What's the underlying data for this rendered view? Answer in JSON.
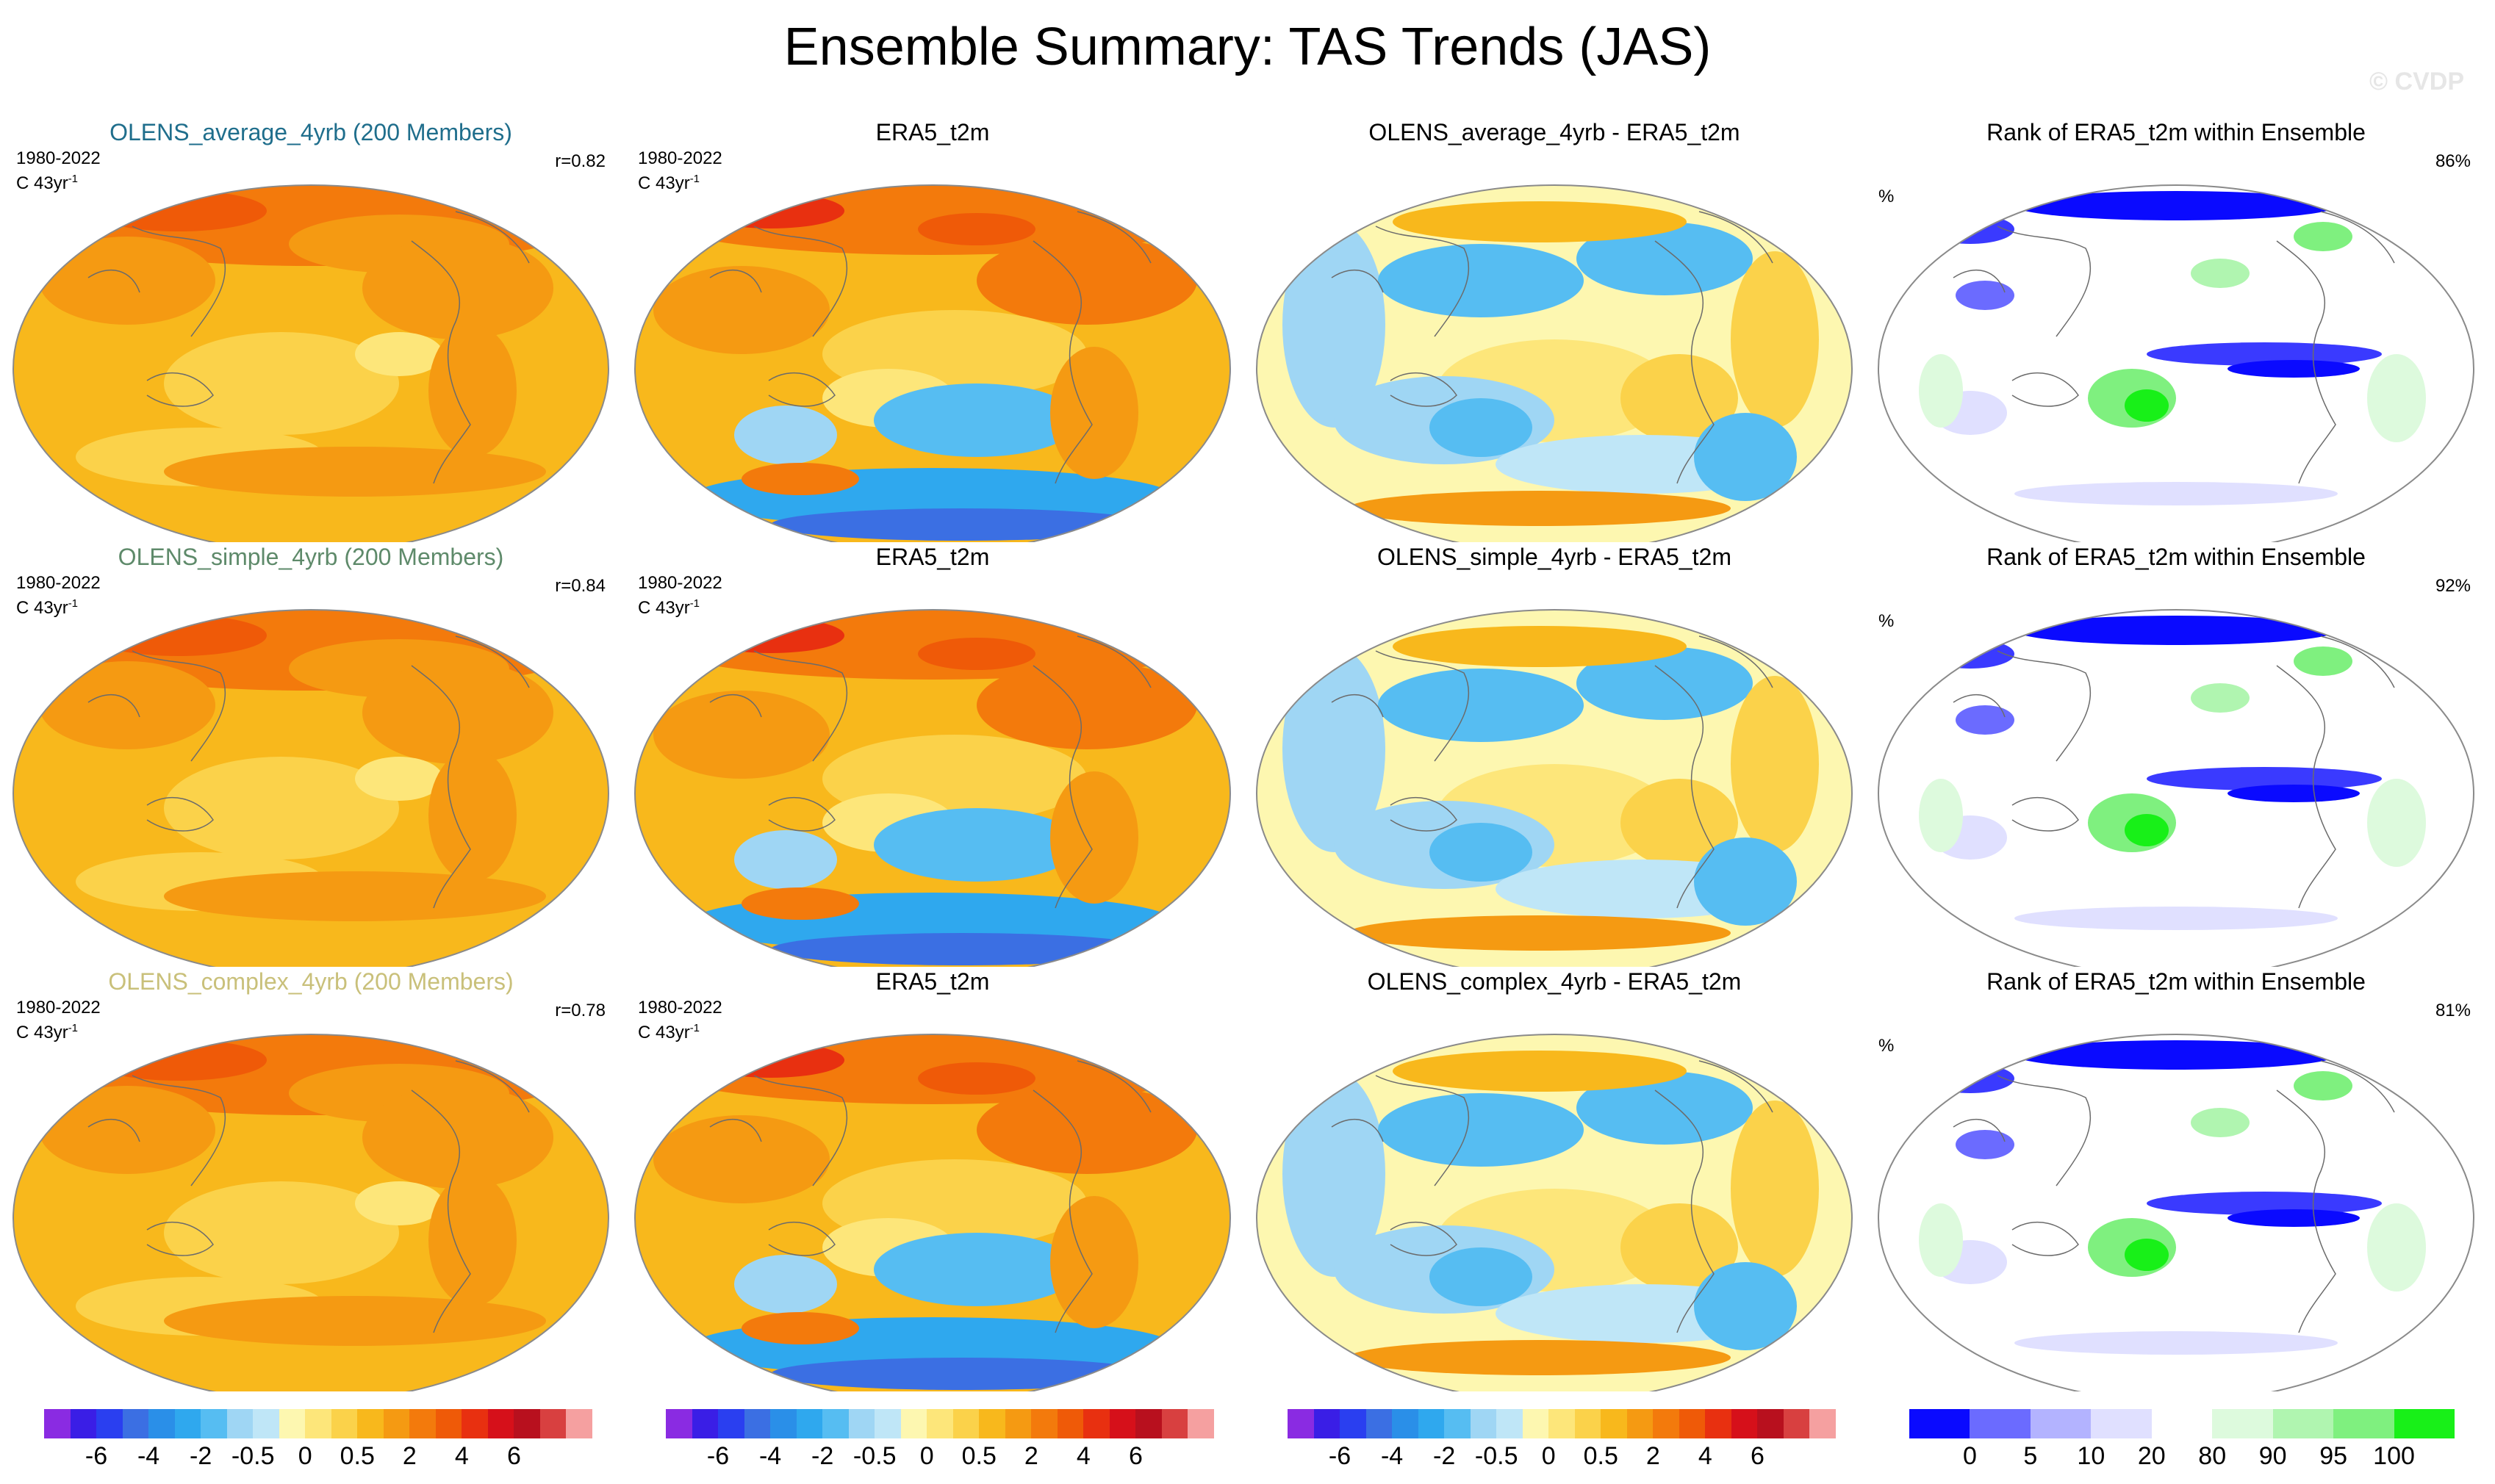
{
  "title": "Ensemble Summary: TAS Trends (JAS)",
  "watermark": "© CVDP",
  "rows": [
    {
      "panels": [
        {
          "title": "OLENS_average_4yrb (200 Members)",
          "title_color": "#1f6e8c",
          "date": "1980-2022",
          "unit": "C 43yr",
          "unit_sup": "-1",
          "right": "r=0.82",
          "type": "trend"
        },
        {
          "title": "ERA5_t2m",
          "title_color": "#000000",
          "date": "1980-2022",
          "unit": "C 43yr",
          "unit_sup": "-1",
          "type": "obs"
        },
        {
          "title": "OLENS_average_4yrb - ERA5_t2m",
          "title_color": "#000000",
          "type": "diff"
        },
        {
          "title": "Rank of ERA5_t2m within Ensemble",
          "title_color": "#000000",
          "left": "%",
          "right": "86%",
          "type": "rank"
        }
      ]
    },
    {
      "panels": [
        {
          "title": "OLENS_simple_4yrb (200 Members)",
          "title_color": "#5e8a6a",
          "date": "1980-2022",
          "unit": "C 43yr",
          "unit_sup": "-1",
          "right": "r=0.84",
          "type": "trend"
        },
        {
          "title": "ERA5_t2m",
          "title_color": "#000000",
          "date": "1980-2022",
          "unit": "C 43yr",
          "unit_sup": "-1",
          "type": "obs"
        },
        {
          "title": "OLENS_simple_4yrb - ERA5_t2m",
          "title_color": "#000000",
          "type": "diff"
        },
        {
          "title": "Rank of ERA5_t2m within Ensemble",
          "title_color": "#000000",
          "left": "%",
          "right": "92%",
          "type": "rank"
        }
      ]
    },
    {
      "panels": [
        {
          "title": "OLENS_complex_4yrb (200 Members)",
          "title_color": "#c9c07a",
          "date": "1980-2022",
          "unit": "C 43yr",
          "unit_sup": "-1",
          "right": "r=0.78",
          "type": "trend"
        },
        {
          "title": "ERA5_t2m",
          "title_color": "#000000",
          "date": "1980-2022",
          "unit": "C 43yr",
          "unit_sup": "-1",
          "type": "obs"
        },
        {
          "title": "OLENS_complex_4yrb - ERA5_t2m",
          "title_color": "#000000",
          "type": "diff"
        },
        {
          "title": "Rank of ERA5_t2m within Ensemble",
          "title_color": "#000000",
          "left": "%",
          "right": "81%",
          "type": "rank"
        }
      ]
    }
  ],
  "colorbars": {
    "trend": {
      "colors": [
        "#8a2be2",
        "#3a1ee6",
        "#2a3ff0",
        "#3b6fe3",
        "#2a8fe8",
        "#2fa8ee",
        "#56bdf2",
        "#9fd6f4",
        "#bfe6f7",
        "#fdf7b0",
        "#fde67a",
        "#fbd24a",
        "#f8b81c",
        "#f59a12",
        "#f37a0c",
        "#ef5a08",
        "#e83010",
        "#d6101a",
        "#b8101e",
        "#d84040",
        "#f5a0a0"
      ],
      "labels": [
        "-6",
        "-4",
        "-2",
        "-0.5",
        "0",
        "0.5",
        "2",
        "4",
        "6"
      ]
    },
    "rank": {
      "colors": [
        "#0a0aff",
        "#6b6bff",
        "#b3b3ff",
        "#e0e0ff",
        "#ffffff",
        "#ddfadd",
        "#b0f5b0",
        "#7ff07f",
        "#18f018"
      ],
      "labels": [
        "0",
        "5",
        "10",
        "20",
        "80",
        "90",
        "95",
        "100"
      ]
    }
  }
}
